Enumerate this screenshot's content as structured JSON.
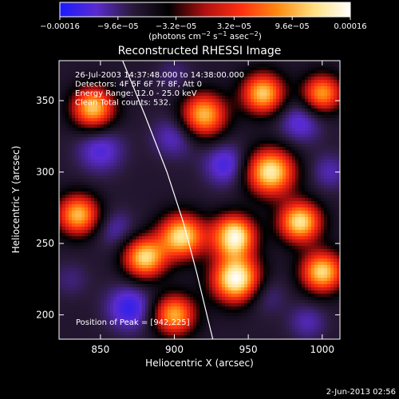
{
  "chart_data": {
    "type": "heatmap",
    "title": "Reconstructed RHESSI Image",
    "xlabel": "Heliocentric X (arcsec)",
    "ylabel": "Heliocentric Y (arcsec)",
    "xlim": [
      822,
      1012
    ],
    "ylim": [
      183,
      378
    ],
    "x_ticks": [
      850,
      900,
      950,
      1000
    ],
    "y_ticks": [
      200,
      250,
      300,
      350
    ],
    "colorbar": {
      "range": [
        -0.00016,
        0.00016
      ],
      "tick_values": [
        -0.00016,
        -9.6e-05,
        -3.2e-05,
        3.2e-05,
        9.6e-05,
        0.00016
      ],
      "tick_labels": [
        "−0.00016",
        "−9.6e−05",
        "−3.2e−05",
        "3.2e−05",
        "9.6e−05",
        "0.00016"
      ],
      "units_text": "photons cm",
      "units_parts": [
        "(photons cm",
        "−2",
        " s",
        "−1",
        " asec",
        "−2",
        ")"
      ],
      "colors": [
        "#1a1aff",
        "#5a2bd0",
        "#2a1a3a",
        "#000000",
        "#b01010",
        "#ff3010",
        "#ff8a10",
        "#ffe080",
        "#ffffff"
      ]
    },
    "annotations": [
      "26-Jul-2003 14:37:48.000 to 14:38:00.000",
      "Detectors: 4F 5F 6F 7F 8F, Att 0",
      "Energy Range: 12.0 - 25.0 keV",
      "Clean     Total counts: 532."
    ],
    "peak_label": "Position of Peak = [942,225]",
    "peak": [
      942,
      225
    ],
    "limb_curve": [
      [
        865,
        378
      ],
      [
        880,
        340
      ],
      [
        895,
        300
      ],
      [
        906,
        265
      ],
      [
        915,
        230
      ],
      [
        922,
        200
      ],
      [
        926,
        183
      ]
    ],
    "features": [
      {
        "x": 940,
        "y": 255,
        "v": 1.0,
        "r": 14
      },
      {
        "x": 942,
        "y": 225,
        "v": 1.0,
        "r": 16
      },
      {
        "x": 905,
        "y": 255,
        "v": 0.8,
        "r": 15
      },
      {
        "x": 880,
        "y": 240,
        "v": 0.75,
        "r": 14
      },
      {
        "x": 965,
        "y": 300,
        "v": 0.85,
        "r": 16
      },
      {
        "x": 985,
        "y": 265,
        "v": 0.8,
        "r": 14
      },
      {
        "x": 1000,
        "y": 230,
        "v": 0.75,
        "r": 14
      },
      {
        "x": 845,
        "y": 345,
        "v": 0.7,
        "r": 14
      },
      {
        "x": 920,
        "y": 340,
        "v": 0.65,
        "r": 15
      },
      {
        "x": 960,
        "y": 355,
        "v": 0.7,
        "r": 14
      },
      {
        "x": 835,
        "y": 270,
        "v": 0.65,
        "r": 14
      },
      {
        "x": 900,
        "y": 200,
        "v": 0.6,
        "r": 14
      },
      {
        "x": 1000,
        "y": 355,
        "v": 0.55,
        "r": 13
      },
      {
        "x": 870,
        "y": 205,
        "v": -0.9,
        "r": 16
      },
      {
        "x": 935,
        "y": 255,
        "v": -0.6,
        "r": 7
      },
      {
        "x": 850,
        "y": 315,
        "v": -0.8,
        "r": 16
      },
      {
        "x": 900,
        "y": 325,
        "v": -0.75,
        "r": 15
      },
      {
        "x": 935,
        "y": 305,
        "v": -0.85,
        "r": 15
      },
      {
        "x": 985,
        "y": 335,
        "v": -0.8,
        "r": 15
      },
      {
        "x": 960,
        "y": 215,
        "v": -0.7,
        "r": 14
      },
      {
        "x": 990,
        "y": 195,
        "v": -0.7,
        "r": 13
      },
      {
        "x": 860,
        "y": 260,
        "v": -0.7,
        "r": 14
      },
      {
        "x": 830,
        "y": 225,
        "v": -0.6,
        "r": 13
      },
      {
        "x": 1005,
        "y": 300,
        "v": -0.7,
        "r": 13
      },
      {
        "x": 900,
        "y": 368,
        "v": -0.6,
        "r": 13
      }
    ]
  },
  "footer": {
    "timestamp": "2-Jun-2013 02:56"
  }
}
